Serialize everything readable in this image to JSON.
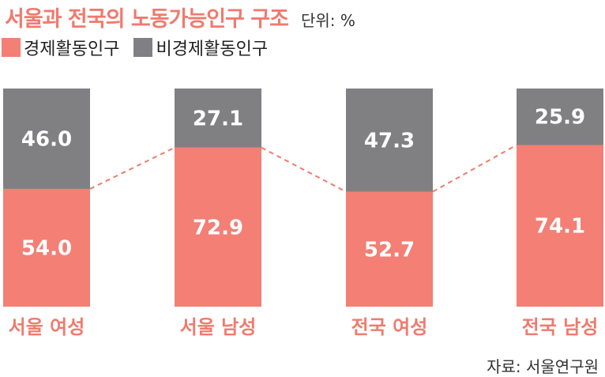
{
  "header": {
    "title": "서울과 전국의 노동가능인구 구조",
    "unit": "단위: %"
  },
  "legend": {
    "items": [
      {
        "label": "경제활동인구",
        "color": "#f37f75"
      },
      {
        "label": "비경제활동인구",
        "color": "#808083"
      }
    ]
  },
  "source": "자료: 서울연구원",
  "colors": {
    "active": "#f37f75",
    "inactive": "#808083",
    "label_text": "#f07a6e",
    "dashed_line": "#f07a6e"
  },
  "chart_data": {
    "type": "bar",
    "stacked": true,
    "title": "서울과 전국의 노동가능인구 구조",
    "ylim": [
      0,
      100
    ],
    "categories": [
      "서울 여성",
      "서울 남성",
      "전국 여성",
      "전국 남성"
    ],
    "series": [
      {
        "name": "경제활동인구",
        "values": [
          54.0,
          72.9,
          52.7,
          74.1
        ]
      },
      {
        "name": "비경제활동인구",
        "values": [
          46.0,
          27.1,
          47.3,
          25.9
        ]
      }
    ],
    "value_labels": [
      [
        "54.0",
        "72.9",
        "52.7",
        "74.1"
      ],
      [
        "46.0",
        "27.1",
        "47.3",
        "25.9"
      ]
    ],
    "connectors": "dashed lines joining tops of 경제활동인구 segments"
  }
}
